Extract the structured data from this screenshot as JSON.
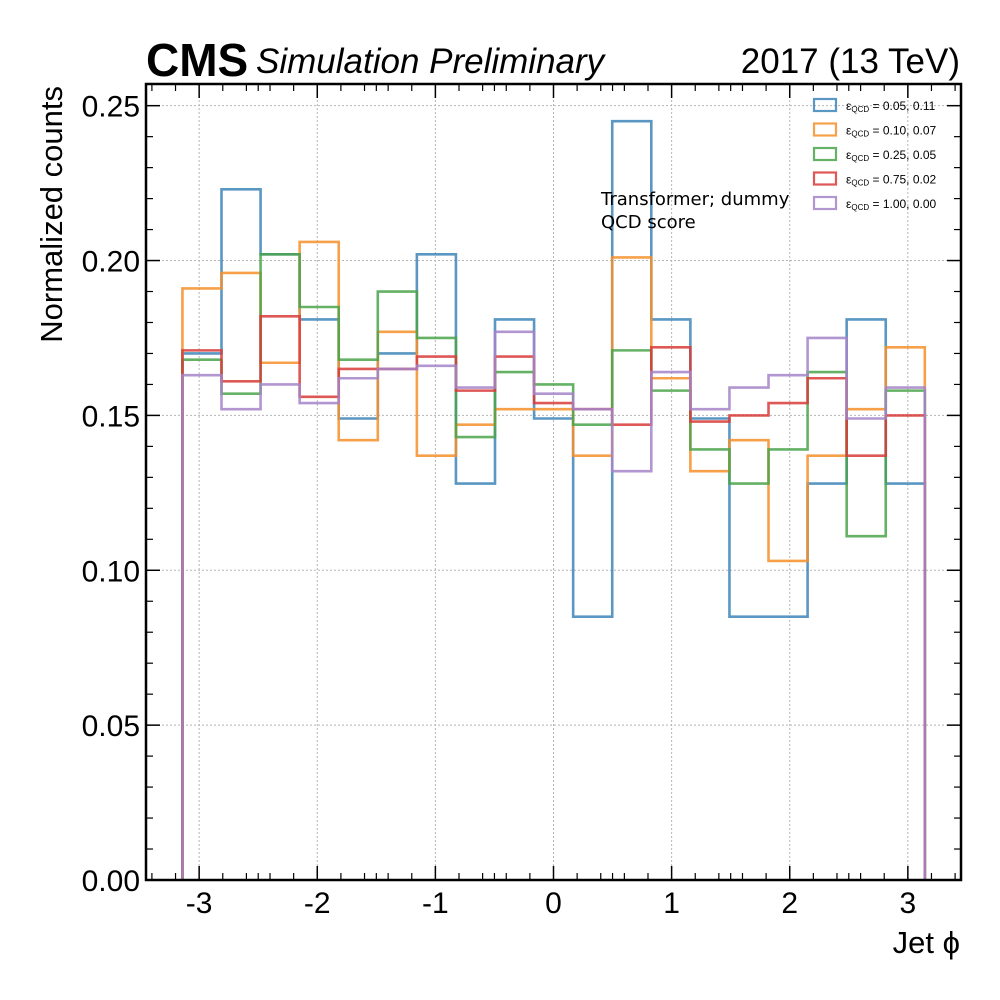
{
  "header": {
    "experiment": "CMS",
    "status": "Simulation Preliminary",
    "lumi": "2017 (13 TeV)"
  },
  "annotation": {
    "line1": "Transformer; dummy",
    "line2": "QCD score"
  },
  "chart_data": {
    "type": "step-histogram",
    "xlabel": "Jet ϕ",
    "ylabel": "Normalized counts",
    "xlim": [
      -3.45,
      3.45
    ],
    "ylim": [
      0.0,
      0.257
    ],
    "xticks": [
      -3,
      -2,
      -1,
      0,
      1,
      2,
      3
    ],
    "xtick_labels": [
      "-3",
      "-2",
      "-1",
      "0",
      "1",
      "2",
      "3"
    ],
    "yticks": [
      0.0,
      0.05,
      0.1,
      0.15,
      0.2,
      0.25
    ],
    "ytick_labels": [
      "0.00",
      "0.05",
      "0.10",
      "0.15",
      "0.20",
      "0.25"
    ],
    "grid": true,
    "legend_position": "top-right",
    "bin_edges": [
      -3.1416,
      -2.8108,
      -2.48,
      -2.1492,
      -1.8184,
      -1.4876,
      -1.1568,
      -0.826,
      -0.4952,
      -0.1644,
      0.1664,
      0.4972,
      0.828,
      1.1588,
      1.4896,
      1.8204,
      2.1512,
      2.482,
      2.8128,
      3.1436
    ],
    "series": [
      {
        "epsilon": "0.05",
        "cut": "0.11",
        "color": "#3d85b8",
        "values": [
          0.17,
          0.223,
          0.202,
          0.181,
          0.149,
          0.17,
          0.202,
          0.128,
          0.181,
          0.149,
          0.085,
          0.245,
          0.181,
          0.149,
          0.085,
          0.085,
          0.128,
          0.181,
          0.128
        ]
      },
      {
        "epsilon": "0.10",
        "cut": "0.07",
        "color": "#f58f2a",
        "values": [
          0.191,
          0.196,
          0.167,
          0.206,
          0.142,
          0.177,
          0.137,
          0.147,
          0.152,
          0.152,
          0.137,
          0.201,
          0.162,
          0.132,
          0.142,
          0.103,
          0.137,
          0.152,
          0.172
        ]
      },
      {
        "epsilon": "0.25",
        "cut": "0.05",
        "color": "#4aa34a",
        "values": [
          0.168,
          0.157,
          0.202,
          0.185,
          0.168,
          0.19,
          0.175,
          0.143,
          0.164,
          0.16,
          0.147,
          0.171,
          0.158,
          0.139,
          0.128,
          0.139,
          0.164,
          0.111,
          0.158
        ]
      },
      {
        "epsilon": "0.75",
        "cut": "0.02",
        "color": "#d83b38",
        "values": [
          0.171,
          0.161,
          0.182,
          0.156,
          0.165,
          0.165,
          0.169,
          0.158,
          0.169,
          0.154,
          0.152,
          0.147,
          0.172,
          0.148,
          0.15,
          0.154,
          0.162,
          0.137,
          0.15
        ]
      },
      {
        "epsilon": "1.00",
        "cut": "0.00",
        "color": "#a584c8",
        "values": [
          0.163,
          0.152,
          0.16,
          0.154,
          0.162,
          0.165,
          0.166,
          0.159,
          0.177,
          0.157,
          0.152,
          0.132,
          0.164,
          0.152,
          0.159,
          0.163,
          0.175,
          0.149,
          0.159
        ]
      }
    ]
  }
}
